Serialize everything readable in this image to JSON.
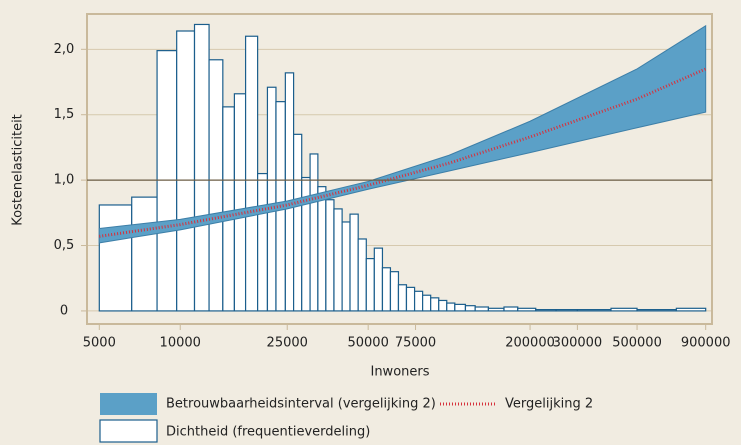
{
  "chart_data": {
    "type": "histogram-fit",
    "x_label": "Inwoners",
    "y_label": "Kostenelasticiteit",
    "xscale": "log",
    "xlim": [
      4500,
      950000
    ],
    "xticks": [
      5000,
      10000,
      25000,
      50000,
      75000,
      200000,
      300000,
      500000,
      900000
    ],
    "ylim": [
      -0.1,
      2.27
    ],
    "yticks": [
      0,
      {
        "value": 0.5,
        "label": "0,5"
      },
      {
        "value": 1,
        "label": "1,0"
      },
      {
        "value": 1.5,
        "label": "1,5"
      },
      {
        "value": 2,
        "label": "2,0"
      }
    ],
    "grid": true,
    "reference_line": 1,
    "series": [
      {
        "name": "Betrouwbaarheidsinterval (vergelijking 2)",
        "kind": "band",
        "color": "#5ba0c7",
        "x": [
          5000,
          10000,
          25000,
          50000,
          100000,
          200000,
          500000,
          900000
        ],
        "lower": [
          0.52,
          0.62,
          0.78,
          0.93,
          1.07,
          1.21,
          1.4,
          1.52
        ],
        "upper": [
          0.63,
          0.7,
          0.84,
          0.99,
          1.19,
          1.45,
          1.85,
          2.18
        ]
      },
      {
        "name": "Vergelijking 2",
        "kind": "line",
        "color": "#d6323c",
        "x": [
          5000,
          10000,
          25000,
          50000,
          100000,
          200000,
          500000,
          900000
        ],
        "values": [
          0.57,
          0.66,
          0.81,
          0.96,
          1.13,
          1.33,
          1.62,
          1.85
        ]
      },
      {
        "name": "Dichtheid (frequentieverdeling)",
        "kind": "histogram",
        "color": "#ffffff",
        "edge_color": "#1b5e8c",
        "bins": [
          5000,
          6600,
          8200,
          9700,
          11300,
          12800,
          14400,
          15900,
          17500,
          19400,
          21100,
          22700,
          24600,
          26400,
          28300,
          30400,
          32500,
          34800,
          37300,
          40000,
          42800,
          45900,
          49200,
          52700,
          56500,
          60500,
          64800,
          69400,
          74400,
          79700,
          85400,
          91500,
          98000,
          105000,
          115000,
          125000,
          140000,
          160000,
          180000,
          210000,
          250000,
          300000,
          400000,
          500000,
          700000,
          900000
        ],
        "counts": [
          0.81,
          0.87,
          1.99,
          2.14,
          2.19,
          1.92,
          1.56,
          1.66,
          2.1,
          1.05,
          1.71,
          1.6,
          1.82,
          1.35,
          1.02,
          1.2,
          0.95,
          0.85,
          0.78,
          0.68,
          0.74,
          0.55,
          0.4,
          0.48,
          0.33,
          0.3,
          0.2,
          0.18,
          0.15,
          0.12,
          0.1,
          0.08,
          0.06,
          0.05,
          0.04,
          0.03,
          0.02,
          0.03,
          0.02,
          0.01,
          0.01,
          0.01,
          0.02,
          0.01,
          0.02
        ]
      }
    ]
  }
}
